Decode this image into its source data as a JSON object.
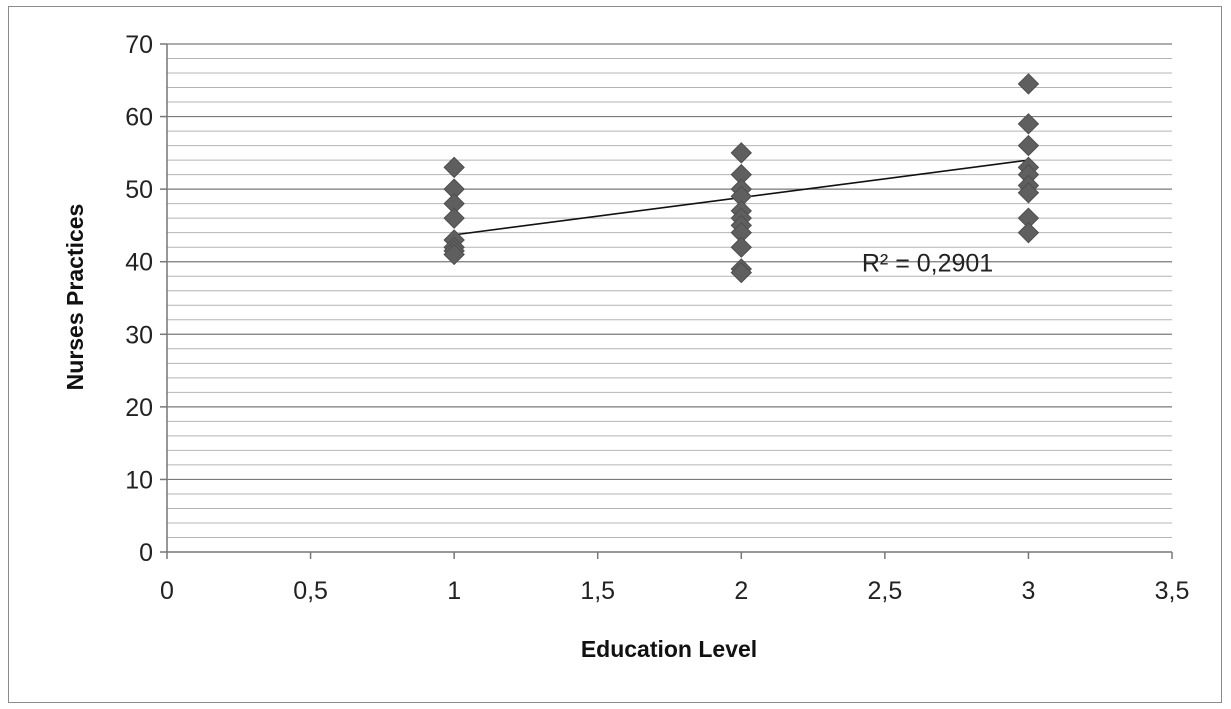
{
  "chart_data": {
    "type": "scatter",
    "xlabel": "Education Level",
    "ylabel": "Nurses Practices",
    "xlim": [
      0,
      3.5
    ],
    "ylim": [
      0,
      70
    ],
    "x_ticks": [
      {
        "value": 0,
        "label": "0"
      },
      {
        "value": 0.5,
        "label": "0,5"
      },
      {
        "value": 1,
        "label": "1"
      },
      {
        "value": 1.5,
        "label": "1,5"
      },
      {
        "value": 2,
        "label": "2"
      },
      {
        "value": 2.5,
        "label": "2,5"
      },
      {
        "value": 3,
        "label": "3"
      },
      {
        "value": 3.5,
        "label": "3,5"
      }
    ],
    "y_ticks": [
      {
        "value": 0,
        "label": "0"
      },
      {
        "value": 10,
        "label": "10"
      },
      {
        "value": 20,
        "label": "20"
      },
      {
        "value": 30,
        "label": "30"
      },
      {
        "value": 40,
        "label": "40"
      },
      {
        "value": 50,
        "label": "50"
      },
      {
        "value": 60,
        "label": "60"
      },
      {
        "value": 70,
        "label": "70"
      }
    ],
    "major_gridlines": true,
    "minor_gridlines": true,
    "minor_gridline_step": 2,
    "marker": "diamond",
    "marker_color": "#5f5f5f",
    "points": [
      {
        "x": 1,
        "y": 53
      },
      {
        "x": 1,
        "y": 50
      },
      {
        "x": 1,
        "y": 48
      },
      {
        "x": 1,
        "y": 46
      },
      {
        "x": 1,
        "y": 43
      },
      {
        "x": 1,
        "y": 42
      },
      {
        "x": 1,
        "y": 41.5
      },
      {
        "x": 1,
        "y": 41
      },
      {
        "x": 2,
        "y": 55
      },
      {
        "x": 2,
        "y": 52
      },
      {
        "x": 2,
        "y": 50
      },
      {
        "x": 2,
        "y": 49
      },
      {
        "x": 2,
        "y": 47
      },
      {
        "x": 2,
        "y": 46
      },
      {
        "x": 2,
        "y": 45
      },
      {
        "x": 2,
        "y": 44
      },
      {
        "x": 2,
        "y": 42
      },
      {
        "x": 2,
        "y": 39
      },
      {
        "x": 2,
        "y": 38.5
      },
      {
        "x": 3,
        "y": 64.5
      },
      {
        "x": 3,
        "y": 59
      },
      {
        "x": 3,
        "y": 56
      },
      {
        "x": 3,
        "y": 53
      },
      {
        "x": 3,
        "y": 52
      },
      {
        "x": 3,
        "y": 50.5
      },
      {
        "x": 3,
        "y": 49.5
      },
      {
        "x": 3,
        "y": 46
      },
      {
        "x": 3,
        "y": 44
      }
    ],
    "trendline": {
      "type": "linear",
      "x_start": 1,
      "x_end": 3,
      "y_start": 43.7,
      "y_end": 54
    },
    "annotation": {
      "text": "R² = 0,2901",
      "x": 2.42,
      "y": 40
    }
  }
}
